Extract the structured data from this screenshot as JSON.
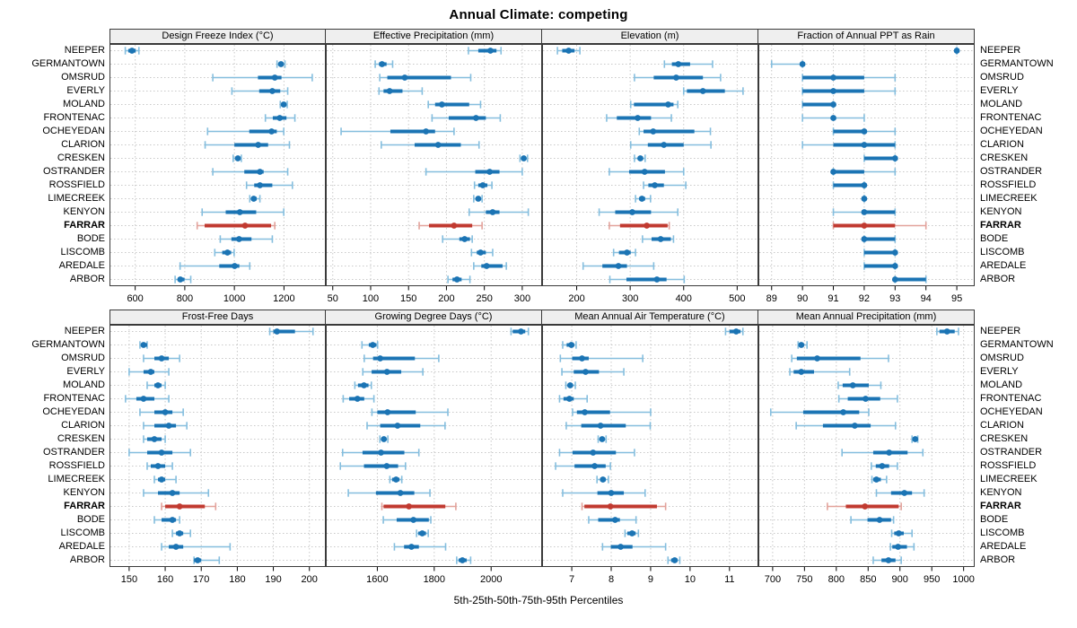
{
  "title": "Annual Climate: competing",
  "caption": "5th-25th-50th-75th-95th Percentiles",
  "highlight_station": "FARRAR",
  "colors": {
    "series": "#1b74b4",
    "series_light": "#85bede",
    "highlight": "#c13a30",
    "highlight_light": "#e2a29b",
    "grid": "#c9c9c9",
    "strip_bg": "#efefef",
    "panel_border": "#3a3a3a"
  },
  "stations": [
    "NEEPER",
    "GERMANTOWN",
    "OMSRUD",
    "EVERLY",
    "MOLAND",
    "FRONTENAC",
    "OCHEYEDAN",
    "CLARION",
    "CRESKEN",
    "OSTRANDER",
    "ROSSFIELD",
    "LIMECREEK",
    "KENYON",
    "FARRAR",
    "BODE",
    "LISCOMB",
    "AREDALE",
    "ARBOR"
  ],
  "chart_data": {
    "type": "dot-interval-trellis",
    "percentiles": [
      "5th",
      "25th",
      "50th",
      "75th",
      "95th"
    ],
    "rows_top_to_bottom": [
      "NEEPER",
      "GERMANTOWN",
      "OMSRUD",
      "EVERLY",
      "MOLAND",
      "FRONTENAC",
      "OCHEYEDAN",
      "CLARION",
      "CRESKEN",
      "OSTRANDER",
      "ROSSFIELD",
      "LIMECREEK",
      "KENYON",
      "FARRAR",
      "BODE",
      "LISCOMB",
      "AREDALE",
      "ARBOR"
    ],
    "panels": [
      {
        "title": "Design Freeze Index (°C)",
        "xlim": [
          500,
          1365
        ],
        "ticks": [
          600,
          800,
          1000,
          1200
        ],
        "series": [
          [
            560,
            572,
            587,
            602,
            615
          ],
          [
            1172,
            1180,
            1188,
            1196,
            1204
          ],
          [
            913,
            1095,
            1163,
            1190,
            1314
          ],
          [
            990,
            1100,
            1153,
            1185,
            1215
          ],
          [
            1185,
            1192,
            1199,
            1206,
            1213
          ],
          [
            1125,
            1155,
            1183,
            1210,
            1244
          ],
          [
            892,
            1060,
            1150,
            1171,
            1199
          ],
          [
            882,
            1000,
            1096,
            1136,
            1222
          ],
          [
            995,
            1008,
            1014,
            1021,
            1028
          ],
          [
            913,
            1040,
            1103,
            1118,
            1215
          ],
          [
            1049,
            1080,
            1103,
            1153,
            1234
          ],
          [
            1062,
            1071,
            1078,
            1090,
            1103
          ],
          [
            870,
            965,
            1022,
            1088,
            1199
          ],
          [
            850,
            880,
            1043,
            1148,
            1163
          ],
          [
            943,
            988,
            1019,
            1069,
            1153
          ],
          [
            921,
            951,
            972,
            987,
            999
          ],
          [
            781,
            939,
            1001,
            1020,
            1062
          ],
          [
            761,
            773,
            782,
            799,
            824
          ]
        ]
      },
      {
        "title": "Effective Precipitation (mm)",
        "xlim": [
          42,
          325
        ],
        "ticks": [
          50,
          100,
          150,
          200,
          250,
          300
        ],
        "series": [
          [
            229,
            242,
            258,
            266,
            272
          ],
          [
            106,
            111,
            115,
            121,
            129
          ],
          [
            112,
            122,
            145,
            206,
            232
          ],
          [
            111,
            117,
            125,
            142,
            168
          ],
          [
            176,
            185,
            194,
            230,
            245
          ],
          [
            181,
            203,
            239,
            252,
            271
          ],
          [
            61,
            126,
            173,
            185,
            210
          ],
          [
            114,
            158,
            189,
            219,
            243
          ],
          [
            297,
            300,
            302,
            304,
            307
          ],
          [
            173,
            238,
            257,
            270,
            300
          ],
          [
            237,
            242,
            248,
            254,
            260
          ],
          [
            236,
            239,
            242,
            245,
            247
          ],
          [
            230,
            252,
            261,
            270,
            308
          ],
          [
            164,
            177,
            210,
            234,
            247
          ],
          [
            195,
            217,
            224,
            231,
            234
          ],
          [
            233,
            240,
            245,
            252,
            261
          ],
          [
            236,
            246,
            253,
            274,
            279
          ],
          [
            202,
            208,
            214,
            220,
            231
          ]
        ]
      },
      {
        "title": "Elevation (m)",
        "xlim": [
          137,
          538
        ],
        "ticks": [
          200,
          300,
          400,
          500
        ],
        "series": [
          [
            164,
            173,
            185,
            196,
            206
          ],
          [
            364,
            378,
            390,
            412,
            454
          ],
          [
            308,
            344,
            386,
            436,
            469
          ],
          [
            400,
            406,
            436,
            477,
            511
          ],
          [
            301,
            307,
            371,
            381,
            389
          ],
          [
            256,
            275,
            314,
            339,
            377
          ],
          [
            317,
            325,
            343,
            420,
            450
          ],
          [
            301,
            333,
            363,
            400,
            451
          ],
          [
            308,
            315,
            319,
            324,
            328
          ],
          [
            261,
            298,
            327,
            365,
            400
          ],
          [
            325,
            334,
            346,
            363,
            404
          ],
          [
            310,
            317,
            322,
            328,
            338
          ],
          [
            242,
            272,
            304,
            339,
            389
          ],
          [
            261,
            281,
            331,
            370,
            373
          ],
          [
            323,
            340,
            357,
            376,
            381
          ],
          [
            269,
            279,
            294,
            301,
            310
          ],
          [
            212,
            248,
            278,
            294,
            344
          ],
          [
            262,
            293,
            350,
            368,
            401
          ]
        ]
      },
      {
        "title": "Fraction of Annual PPT as Rain",
        "xlim": [
          88.6,
          95.55
        ],
        "ticks": [
          89,
          90,
          91,
          92,
          93,
          94,
          95
        ],
        "series": [
          [
            95,
            95,
            95,
            95,
            95
          ],
          [
            89,
            90,
            90,
            90,
            90
          ],
          [
            90,
            90,
            91,
            92,
            93
          ],
          [
            90,
            90,
            91,
            92,
            93
          ],
          [
            90,
            90,
            91,
            91,
            91
          ],
          [
            90,
            91,
            91,
            91,
            92
          ],
          [
            91,
            91,
            92,
            92,
            93
          ],
          [
            90,
            91,
            92,
            93,
            93
          ],
          [
            92,
            92,
            93,
            93,
            93
          ],
          [
            91,
            91,
            91,
            92,
            93
          ],
          [
            91,
            91,
            92,
            92,
            92
          ],
          [
            92,
            92,
            92,
            92,
            92
          ],
          [
            91,
            92,
            92,
            93,
            93
          ],
          [
            91,
            91,
            92,
            93,
            94
          ],
          [
            92,
            92,
            92,
            93,
            93
          ],
          [
            92,
            92,
            93,
            93,
            93
          ],
          [
            92,
            92,
            93,
            93,
            93
          ],
          [
            93,
            93,
            93,
            94,
            94
          ]
        ]
      },
      {
        "title": "Frost-Free Days",
        "xlim": [
          144.8,
          204.3
        ],
        "ticks": [
          150,
          160,
          170,
          180,
          190,
          200
        ],
        "series": [
          [
            189,
            190,
            191,
            196,
            201
          ],
          [
            153,
            154,
            154,
            155,
            155
          ],
          [
            154,
            157,
            159,
            161,
            164
          ],
          [
            150,
            154,
            156,
            157,
            161
          ],
          [
            155,
            157,
            158,
            159,
            160
          ],
          [
            149,
            152,
            154,
            157,
            161
          ],
          [
            153,
            157,
            160,
            162,
            165
          ],
          [
            154,
            157,
            161,
            163,
            166
          ],
          [
            154,
            155,
            157,
            159,
            160
          ],
          [
            150,
            155,
            159,
            162,
            167
          ],
          [
            155,
            156,
            158,
            160,
            162
          ],
          [
            157,
            158,
            159,
            160,
            163
          ],
          [
            154,
            158,
            162,
            164,
            172
          ],
          [
            159,
            160,
            164,
            171,
            174
          ],
          [
            157,
            159,
            162,
            163,
            164
          ],
          [
            162,
            163,
            164,
            165,
            167
          ],
          [
            159,
            161,
            163,
            165,
            178
          ],
          [
            168,
            168,
            169,
            170,
            175
          ]
        ]
      },
      {
        "title": "Growing Degree Days (°C)",
        "xlim": [
          1422,
          2176
        ],
        "ticks": [
          1600,
          1800,
          2000
        ],
        "series": [
          [
            2070,
            2076,
            2105,
            2120,
            2131
          ],
          [
            1546,
            1570,
            1584,
            1597,
            1601
          ],
          [
            1554,
            1585,
            1610,
            1732,
            1816
          ],
          [
            1549,
            1580,
            1634,
            1684,
            1760
          ],
          [
            1521,
            1532,
            1553,
            1569,
            1579
          ],
          [
            1480,
            1501,
            1530,
            1554,
            1588
          ],
          [
            1581,
            1600,
            1636,
            1735,
            1848
          ],
          [
            1564,
            1610,
            1671,
            1751,
            1838
          ],
          [
            1609,
            1617,
            1623,
            1630,
            1637
          ],
          [
            1478,
            1548,
            1613,
            1695,
            1746
          ],
          [
            1470,
            1553,
            1633,
            1673,
            1699
          ],
          [
            1644,
            1652,
            1666,
            1678,
            1686
          ],
          [
            1498,
            1595,
            1681,
            1730,
            1785
          ],
          [
            1616,
            1622,
            1711,
            1839,
            1876
          ],
          [
            1621,
            1668,
            1727,
            1781,
            1788
          ],
          [
            1738,
            1744,
            1758,
            1771,
            1779
          ],
          [
            1660,
            1694,
            1720,
            1746,
            1840
          ],
          [
            1879,
            1886,
            1899,
            1914,
            1928
          ]
        ]
      },
      {
        "title": "Mean Annual Air Temperature (°C)",
        "xlim": [
          6.27,
          11.71
        ],
        "ticks": [
          7,
          8,
          9,
          10,
          11
        ],
        "series": [
          [
            10.9,
            11.0,
            11.17,
            11.28,
            11.34
          ],
          [
            6.77,
            6.87,
            6.99,
            7.06,
            7.11
          ],
          [
            6.71,
            7.01,
            7.26,
            7.43,
            8.8
          ],
          [
            6.75,
            7.05,
            7.35,
            7.69,
            8.32
          ],
          [
            6.85,
            6.91,
            6.96,
            7.02,
            7.09
          ],
          [
            6.69,
            6.79,
            6.94,
            7.05,
            7.39
          ],
          [
            7.02,
            7.13,
            7.33,
            7.97,
            9.0
          ],
          [
            6.86,
            7.24,
            7.73,
            8.37,
            8.99
          ],
          [
            7.67,
            7.72,
            7.77,
            7.82,
            7.87
          ],
          [
            6.69,
            7.02,
            7.54,
            8.12,
            8.59
          ],
          [
            6.59,
            7.07,
            7.58,
            7.86,
            7.98
          ],
          [
            7.64,
            7.72,
            7.79,
            7.86,
            7.93
          ],
          [
            6.77,
            7.65,
            8.0,
            8.32,
            8.86
          ],
          [
            7.26,
            7.32,
            7.98,
            9.16,
            9.38
          ],
          [
            7.43,
            7.67,
            8.1,
            8.22,
            8.63
          ],
          [
            8.35,
            8.41,
            8.53,
            8.62,
            8.69
          ],
          [
            7.78,
            7.99,
            8.24,
            8.54,
            9.38
          ],
          [
            9.44,
            9.52,
            9.61,
            9.68,
            9.74
          ]
        ]
      },
      {
        "title": "Mean Annual Precipitation (mm)",
        "xlim": [
          679,
          1016
        ],
        "ticks": [
          700,
          750,
          800,
          850,
          900,
          950,
          1000
        ],
        "series": [
          [
            958,
            962,
            974,
            986,
            992
          ],
          [
            740,
            742,
            745,
            749,
            754
          ],
          [
            730,
            738,
            770,
            838,
            882
          ],
          [
            727,
            733,
            745,
            765,
            821
          ],
          [
            803,
            810,
            826,
            851,
            870
          ],
          [
            804,
            818,
            846,
            869,
            896
          ],
          [
            697,
            748,
            811,
            836,
            851
          ],
          [
            737,
            779,
            829,
            854,
            893
          ],
          [
            919,
            921,
            924,
            926,
            928
          ],
          [
            809,
            858,
            883,
            912,
            936
          ],
          [
            855,
            862,
            872,
            883,
            896
          ],
          [
            856,
            858,
            863,
            870,
            879
          ],
          [
            863,
            886,
            907,
            919,
            938
          ],
          [
            786,
            815,
            845,
            898,
            902
          ],
          [
            823,
            849,
            868,
            886,
            890
          ],
          [
            887,
            891,
            898,
            906,
            919
          ],
          [
            885,
            888,
            897,
            911,
            922
          ],
          [
            858,
            871,
            882,
            893,
            902
          ]
        ]
      }
    ]
  }
}
